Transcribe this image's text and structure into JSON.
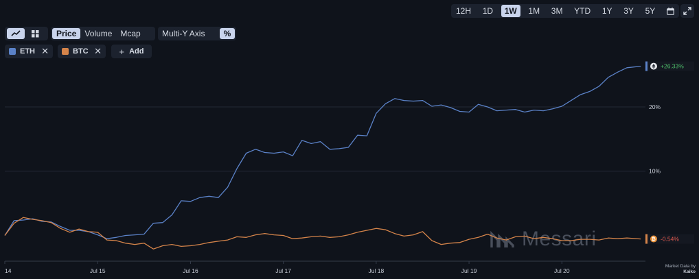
{
  "toolbar": {
    "ranges": [
      {
        "label": "12H",
        "active": false
      },
      {
        "label": "1D",
        "active": false
      },
      {
        "label": "1W",
        "active": true
      },
      {
        "label": "1M",
        "active": false
      },
      {
        "label": "3M",
        "active": false
      },
      {
        "label": "YTD",
        "active": false
      },
      {
        "label": "1Y",
        "active": false
      },
      {
        "label": "3Y",
        "active": false
      },
      {
        "label": "5Y",
        "active": false
      }
    ],
    "metrics": [
      {
        "label": "Price",
        "active": true
      },
      {
        "label": "Volume",
        "active": false
      },
      {
        "label": "Mcap",
        "active": false
      }
    ],
    "multi_axis_label": "Multi-Y Axis",
    "percent_label": "%"
  },
  "assets": [
    {
      "label": "ETH",
      "color": "#5b82c8"
    },
    {
      "label": "BTC",
      "color": "#d5844a"
    }
  ],
  "add_label": "Add",
  "watermark": "Messari",
  "attribution": {
    "line1": "Market Data by",
    "line2": "Kaiko"
  },
  "chart_data": {
    "type": "line",
    "x_ticks": [
      "14",
      "Jul 15",
      "Jul 16",
      "Jul 17",
      "Jul 18",
      "Jul 19",
      "Jul 20"
    ],
    "y_ticks": [
      "20%",
      "10%"
    ],
    "y_tick_values": [
      20,
      10
    ],
    "xlim": [
      14,
      20.9
    ],
    "ylim": [
      -4,
      26.5
    ],
    "grid": true,
    "series": [
      {
        "name": "ETH",
        "color": "#5b82c8",
        "end_label": "+26.33%",
        "end_label_color": "#4fc06c",
        "x": [
          14.0,
          14.1,
          14.2,
          14.3,
          14.4,
          14.5,
          14.6,
          14.7,
          14.8,
          14.9,
          15.0,
          15.1,
          15.2,
          15.3,
          15.4,
          15.5,
          15.6,
          15.7,
          15.8,
          15.9,
          16.0,
          16.1,
          16.2,
          16.3,
          16.4,
          16.5,
          16.6,
          16.7,
          16.8,
          16.9,
          17.0,
          17.1,
          17.2,
          17.3,
          17.4,
          17.5,
          17.6,
          17.7,
          17.8,
          17.9,
          18.0,
          18.1,
          18.2,
          18.3,
          18.4,
          18.5,
          18.6,
          18.7,
          18.8,
          18.9,
          19.0,
          19.1,
          19.2,
          19.3,
          19.4,
          19.5,
          19.6,
          19.7,
          19.8,
          19.9,
          20.0,
          20.1,
          20.2,
          20.3,
          20.4,
          20.5,
          20.6,
          20.7,
          20.85
        ],
        "y": [
          0.0,
          2.3,
          2.4,
          2.6,
          2.2,
          2.1,
          1.4,
          0.8,
          0.8,
          0.6,
          0.1,
          -0.5,
          -0.3,
          0.0,
          0.1,
          0.2,
          1.9,
          2.0,
          3.2,
          5.4,
          5.3,
          5.9,
          6.1,
          5.9,
          7.5,
          10.4,
          12.8,
          13.4,
          12.9,
          12.8,
          13.0,
          12.4,
          14.8,
          14.3,
          14.6,
          13.4,
          13.5,
          13.7,
          15.6,
          15.5,
          19.0,
          20.5,
          21.3,
          21.0,
          20.9,
          21.0,
          20.1,
          20.3,
          19.9,
          19.3,
          19.2,
          20.4,
          20.0,
          19.4,
          19.5,
          19.6,
          19.2,
          19.5,
          19.4,
          19.7,
          20.1,
          21.0,
          21.9,
          22.4,
          23.2,
          24.6,
          25.4,
          26.1,
          26.33
        ]
      },
      {
        "name": "BTC",
        "color": "#d5844a",
        "end_label": "-0.54%",
        "end_label_color": "#e0594f",
        "x": [
          14.0,
          14.1,
          14.2,
          14.3,
          14.4,
          14.5,
          14.6,
          14.7,
          14.8,
          14.9,
          15.0,
          15.1,
          15.2,
          15.3,
          15.4,
          15.5,
          15.6,
          15.7,
          15.8,
          15.9,
          16.0,
          16.1,
          16.2,
          16.3,
          16.4,
          16.5,
          16.6,
          16.7,
          16.8,
          16.9,
          17.0,
          17.1,
          17.2,
          17.3,
          17.4,
          17.5,
          17.6,
          17.7,
          17.8,
          17.9,
          18.0,
          18.1,
          18.2,
          18.3,
          18.4,
          18.5,
          18.6,
          18.7,
          18.8,
          18.9,
          19.0,
          19.1,
          19.2,
          19.3,
          19.4,
          19.5,
          19.6,
          19.7,
          19.8,
          19.9,
          20.0,
          20.1,
          20.2,
          20.3,
          20.4,
          20.5,
          20.6,
          20.7,
          20.85
        ],
        "y": [
          0.0,
          1.9,
          2.8,
          2.5,
          2.3,
          2.0,
          1.1,
          0.5,
          1.0,
          0.6,
          0.5,
          -0.7,
          -0.8,
          -1.2,
          -1.4,
          -1.2,
          -2.1,
          -1.6,
          -1.4,
          -1.7,
          -1.6,
          -1.4,
          -1.1,
          -0.9,
          -0.7,
          -0.2,
          -0.3,
          0.1,
          0.3,
          0.1,
          0.0,
          -0.5,
          -0.4,
          -0.2,
          -0.1,
          -0.3,
          -0.2,
          0.1,
          0.5,
          0.8,
          1.1,
          0.9,
          0.3,
          -0.1,
          0.1,
          0.6,
          -0.8,
          -1.4,
          -1.2,
          -1.1,
          -0.6,
          -0.3,
          0.2,
          -0.4,
          -0.7,
          -0.2,
          -0.1,
          -0.5,
          -0.3,
          -0.5,
          -0.8,
          -0.8,
          -0.6,
          -0.6,
          -0.7,
          -0.4,
          -0.5,
          -0.4,
          -0.54
        ]
      }
    ]
  }
}
